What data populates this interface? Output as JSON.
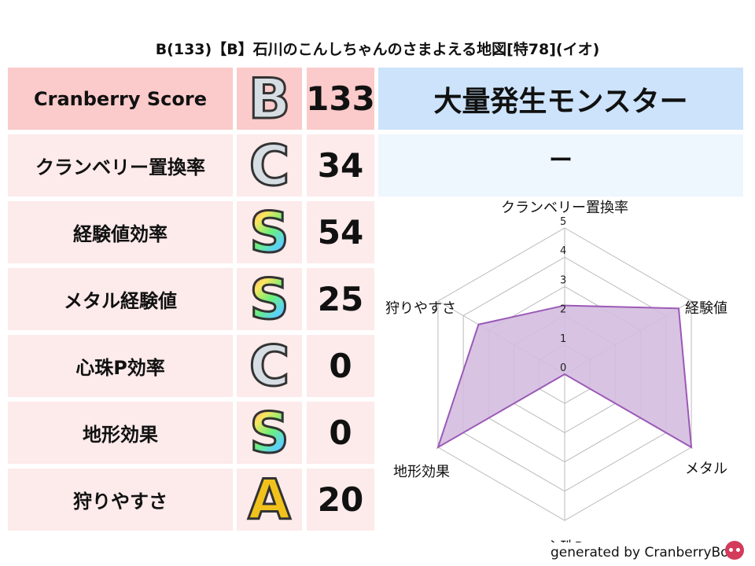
{
  "title": "B(133)【B】石川のこんしちゃんのさまよえる地図[特78](イオ)",
  "score_table": [
    {
      "label": "Cranberry Score",
      "grade": "B",
      "grade_style": "silver",
      "value": "133"
    },
    {
      "label": "クランベリー置換率",
      "grade": "C",
      "grade_style": "silver",
      "value": "34"
    },
    {
      "label": "経験値効率",
      "grade": "S",
      "grade_style": "rainbow",
      "value": "54"
    },
    {
      "label": "メタル経験値",
      "grade": "S",
      "grade_style": "rainbow",
      "value": "25"
    },
    {
      "label": "心珠P効率",
      "grade": "C",
      "grade_style": "silver",
      "value": "0"
    },
    {
      "label": "地形効果",
      "grade": "S",
      "grade_style": "rainbow",
      "value": "0"
    },
    {
      "label": "狩りやすさ",
      "grade": "A",
      "grade_style": "gold",
      "value": "20"
    }
  ],
  "monster_panel": {
    "header": "大量発生モンスター",
    "value": "ー"
  },
  "colors": {
    "header_pink": "#fbcaca",
    "row_pink": "#fdeaea",
    "header_blue": "#cce3fb",
    "row_blue": "#eef6fe",
    "radar_line": "#9b59b6",
    "radar_fill": "#d4bce0"
  },
  "chart_data": {
    "type": "radar",
    "axes": [
      "クランベリー置換率",
      "経験値",
      "メタル",
      "心珠P",
      "地形効果",
      "狩りやすさ"
    ],
    "values": [
      2.35,
      4.5,
      5,
      0,
      5,
      3.4
    ],
    "rlim": [
      0,
      5
    ],
    "ticks": [
      "0",
      "1",
      "2",
      "3",
      "4",
      "5"
    ],
    "grid": true
  },
  "footer": "generated by CranberryBot"
}
